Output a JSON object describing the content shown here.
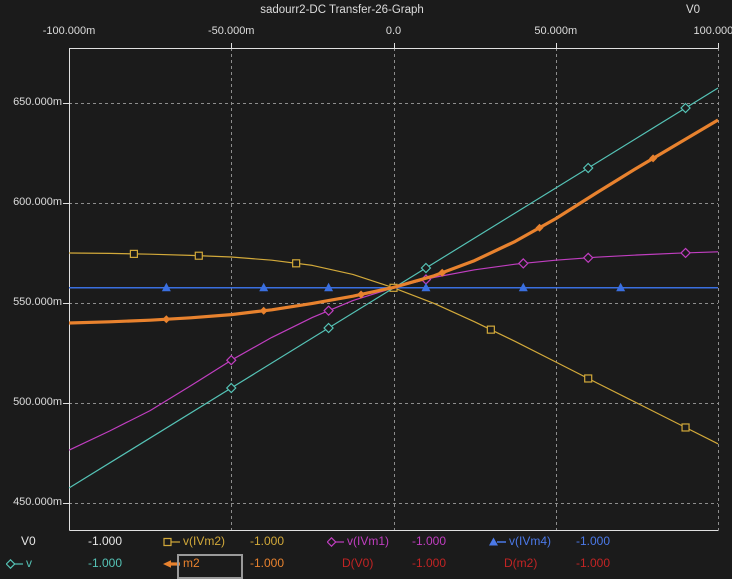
{
  "header": {
    "title": "sadourr2-DC Transfer-26-Graph",
    "x_axis_variable": "V0"
  },
  "colors": {
    "background": "#1b1b1b",
    "text": "#dcdcdc",
    "grid": "#8d8d8d",
    "border": "#e0e0e0",
    "selection_box": "#9a9a9a",
    "yellow": "#d2a93a",
    "magenta": "#c03ec0",
    "blue": "#3a6fe0",
    "cyan": "#55c3b6",
    "orange": "#e8822e",
    "red": "#c22424",
    "white": "#e6e6e6"
  },
  "chart_data": {
    "type": "line",
    "title": "sadourr2-DC Transfer-26-Graph",
    "grid": true,
    "legend_position": "bottom",
    "x_axis": {
      "label": "V0",
      "position": "top",
      "unit_mV": true,
      "min_mV": -100,
      "max_mV": 100,
      "ticks": [
        {
          "value_mV": -100,
          "label": "-100.000m",
          "gridline": false
        },
        {
          "value_mV": -50,
          "label": "-50.000m",
          "gridline": true
        },
        {
          "value_mV": 0,
          "label": "0.0",
          "gridline": true
        },
        {
          "value_mV": 50,
          "label": "50.000m",
          "gridline": true
        },
        {
          "value_mV": 100,
          "label": "100.000m",
          "gridline": true
        }
      ]
    },
    "y_axis": {
      "label": "",
      "unit_mV": true,
      "min_mV": 436.5,
      "max_mV": 677.5,
      "ticks": [
        {
          "value_mV": 650,
          "label": "650.000m"
        },
        {
          "value_mV": 600,
          "label": "600.000m"
        },
        {
          "value_mV": 550,
          "label": "550.000m"
        },
        {
          "value_mV": 500,
          "label": "500.000m"
        },
        {
          "value_mV": 450,
          "label": "450.000m"
        }
      ]
    },
    "series": [
      {
        "name": "v(IVm2)",
        "color": "#d2a93a",
        "width": 1.2,
        "marker": "square",
        "marker_x_mV": [
          -80,
          -60,
          -30,
          0,
          30,
          60,
          90
        ],
        "points_mV": [
          [
            -100,
            575
          ],
          [
            -87.5,
            574.8
          ],
          [
            -75,
            574.4
          ],
          [
            -62.5,
            573.8
          ],
          [
            -50,
            573
          ],
          [
            -37.5,
            571.4
          ],
          [
            -25,
            568.8
          ],
          [
            -12.5,
            564.3
          ],
          [
            0,
            557.6
          ],
          [
            12.5,
            549.8
          ],
          [
            25,
            540.6
          ],
          [
            37.5,
            530.8
          ],
          [
            50,
            520.5
          ],
          [
            62.5,
            510.2
          ],
          [
            75,
            500
          ],
          [
            87.5,
            489.8
          ],
          [
            100,
            479.6
          ]
        ]
      },
      {
        "name": "v(IVm1)",
        "color": "#c03ec0",
        "width": 1.2,
        "marker": "diamond",
        "marker_x_mV": [
          -50,
          -20,
          10,
          40,
          60,
          90
        ],
        "points_mV": [
          [
            -100,
            476.4
          ],
          [
            -87.5,
            486
          ],
          [
            -75,
            496.2
          ],
          [
            -62.5,
            508.6
          ],
          [
            -50,
            521.4
          ],
          [
            -37.5,
            532.8
          ],
          [
            -25,
            542.8
          ],
          [
            -12.5,
            551.2
          ],
          [
            0,
            557.6
          ],
          [
            12.5,
            562.8
          ],
          [
            25,
            566.6
          ],
          [
            37.5,
            569.4
          ],
          [
            50,
            571.4
          ],
          [
            62.5,
            572.9
          ],
          [
            75,
            574
          ],
          [
            87.5,
            574.9
          ],
          [
            100,
            575.6
          ]
        ]
      },
      {
        "name": "v",
        "color": "#55c3b6",
        "width": 1.2,
        "marker": "diamond",
        "marker_x_mV": [
          -50,
          -20,
          10,
          60,
          90
        ],
        "points_mV": [
          [
            -100,
            457.5
          ],
          [
            100,
            657.5
          ]
        ]
      },
      {
        "name": "v(IVm4)",
        "color": "#3a6fe0",
        "width": 1.5,
        "marker": "triangle",
        "marker_x_mV": [
          -70,
          -40,
          -20,
          10,
          40,
          70
        ],
        "points_mV": [
          [
            -100,
            557.6
          ],
          [
            100,
            557.6
          ]
        ]
      },
      {
        "name": "m2",
        "color": "#e8822e",
        "width": 3.2,
        "marker": "diamond-filled",
        "marker_x_mV": [
          -70,
          -40,
          -10,
          15,
          45,
          80
        ],
        "points_mV": [
          [
            -100,
            540
          ],
          [
            -87.5,
            540.6
          ],
          [
            -75,
            541.4
          ],
          [
            -62.5,
            542.6
          ],
          [
            -50,
            544.2
          ],
          [
            -37.5,
            546.6
          ],
          [
            -25,
            549.8
          ],
          [
            -12.5,
            553.4
          ],
          [
            0,
            557.8
          ],
          [
            12.5,
            563.6
          ],
          [
            25,
            571.2
          ],
          [
            37.5,
            580.8
          ],
          [
            50,
            592.2
          ],
          [
            62.5,
            605
          ],
          [
            75,
            617.5
          ],
          [
            87.5,
            629.5
          ],
          [
            100,
            641.5
          ]
        ]
      }
    ],
    "legend_rows": [
      [
        {
          "label": "V0",
          "value": "-1.000",
          "color": "#e6e6e6",
          "marker": "none",
          "selected": false
        },
        {
          "label": "v(IVm2)",
          "value": "-1.000",
          "color": "#d2a93a",
          "marker": "square",
          "selected": false
        },
        {
          "label": "v(IVm1)",
          "value": "-1.000",
          "color": "#c03ec0",
          "marker": "diamond",
          "selected": false
        },
        {
          "label": "v(IVm4)",
          "value": "-1.000",
          "color": "#4b79e8",
          "marker": "triangle",
          "selected": false
        }
      ],
      [
        {
          "label": "v",
          "value": "-1.000",
          "color": "#55c3b6",
          "marker": "diamond",
          "selected": false
        },
        {
          "label": "m2",
          "value": "-1.000",
          "color": "#e8822e",
          "marker": "thick-arrow",
          "selected": true
        },
        {
          "label": "D(V0)",
          "value": "-1.000",
          "color": "#c22424",
          "marker": "none",
          "selected": false
        },
        {
          "label": "D(m2)",
          "value": "-1.000",
          "color": "#c22424",
          "marker": "none",
          "selected": false
        }
      ]
    ]
  }
}
